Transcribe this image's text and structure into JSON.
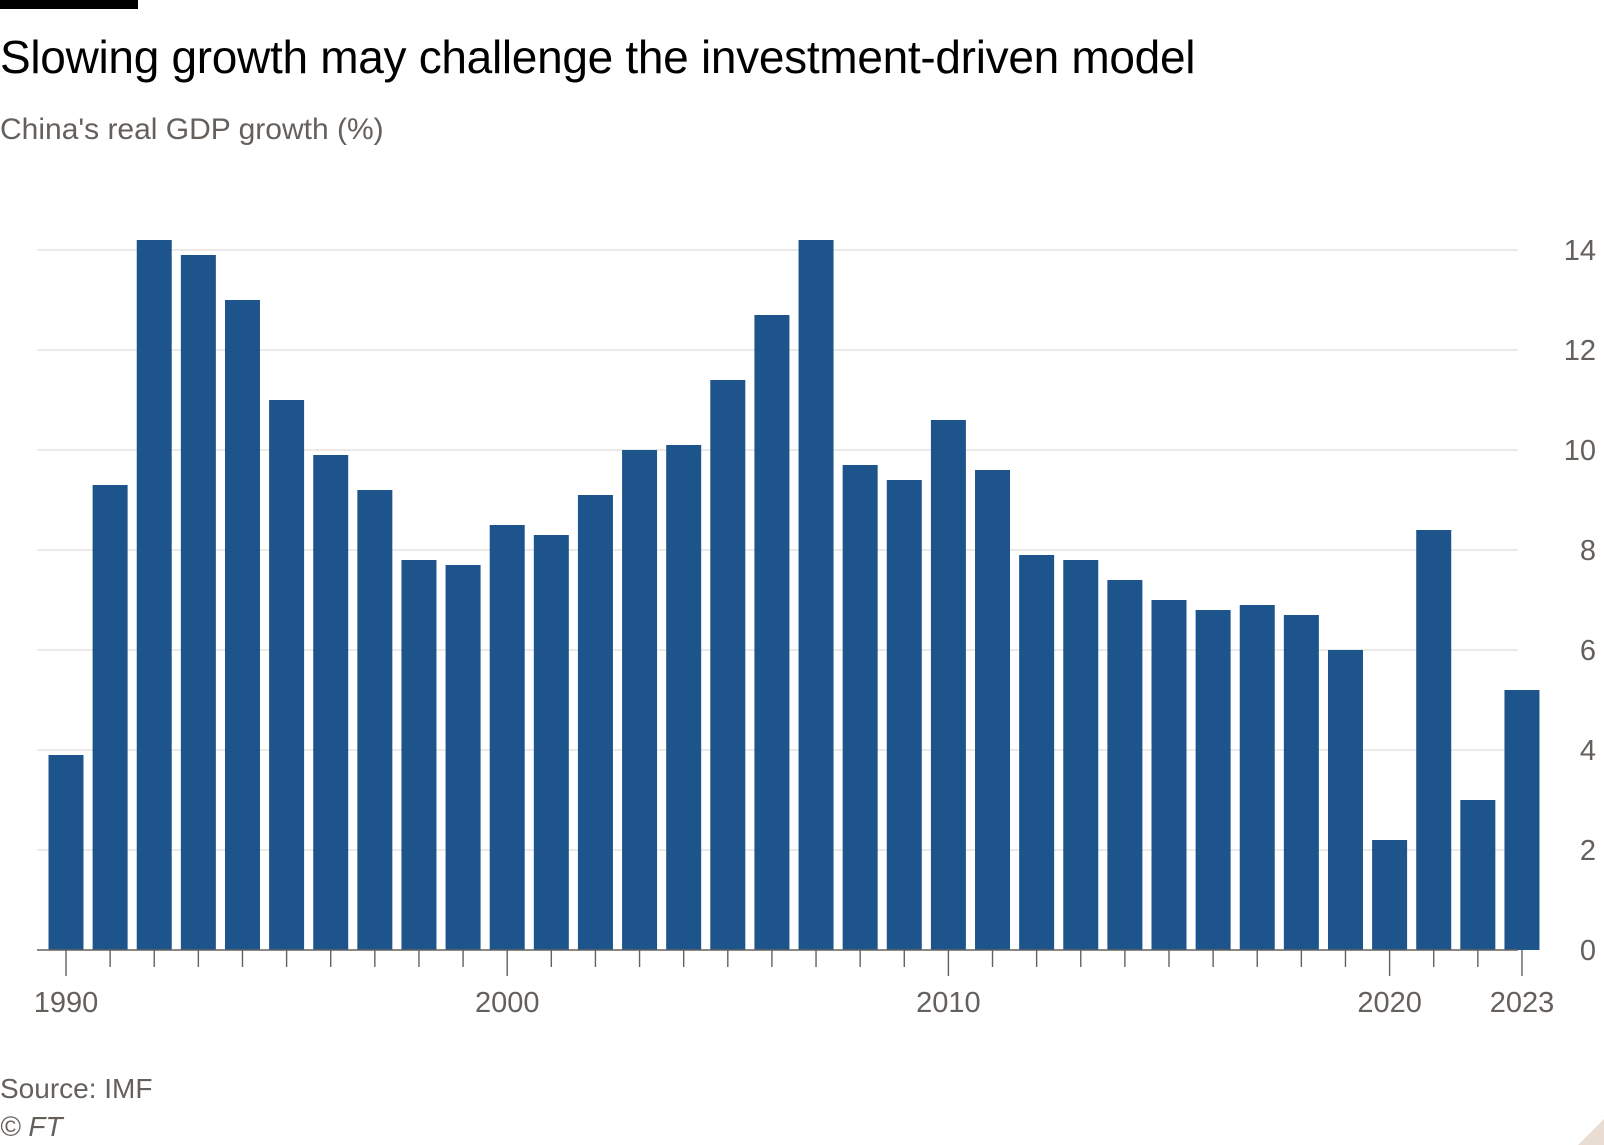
{
  "header": {
    "title": "Slowing growth may challenge the investment-driven model",
    "subtitle": "China's real GDP growth (%)"
  },
  "footer": {
    "source": "Source: IMF",
    "credit": "© FT"
  },
  "colors": {
    "bar": "#1e548c",
    "grid": "#e0dcd8",
    "axis": "#66605c",
    "text": "#66605c"
  },
  "chart_data": {
    "type": "bar",
    "title": "Slowing growth may challenge the investment-driven model",
    "subtitle": "China's real GDP growth (%)",
    "xlabel": "",
    "ylabel": "",
    "y_axis_side": "right",
    "ylim": [
      0,
      14
    ],
    "yticks": [
      0,
      2,
      4,
      6,
      8,
      10,
      12,
      14
    ],
    "xtick_labels": [
      "1990",
      "2000",
      "2010",
      "2020",
      "2023"
    ],
    "grid": true,
    "categories": [
      1990,
      1991,
      1992,
      1993,
      1994,
      1995,
      1996,
      1997,
      1998,
      1999,
      2000,
      2001,
      2002,
      2003,
      2004,
      2005,
      2006,
      2007,
      2008,
      2009,
      2010,
      2011,
      2012,
      2013,
      2014,
      2015,
      2016,
      2017,
      2018,
      2019,
      2020,
      2021,
      2022,
      2023
    ],
    "values": [
      3.9,
      9.3,
      14.2,
      13.9,
      13.0,
      11.0,
      9.9,
      9.2,
      7.8,
      7.7,
      8.5,
      8.3,
      9.1,
      10.0,
      10.1,
      11.4,
      12.7,
      14.2,
      9.7,
      9.4,
      10.6,
      9.6,
      7.9,
      7.8,
      7.4,
      7.0,
      6.8,
      6.9,
      6.7,
      6.0,
      2.2,
      8.4,
      3.0,
      5.2
    ]
  }
}
